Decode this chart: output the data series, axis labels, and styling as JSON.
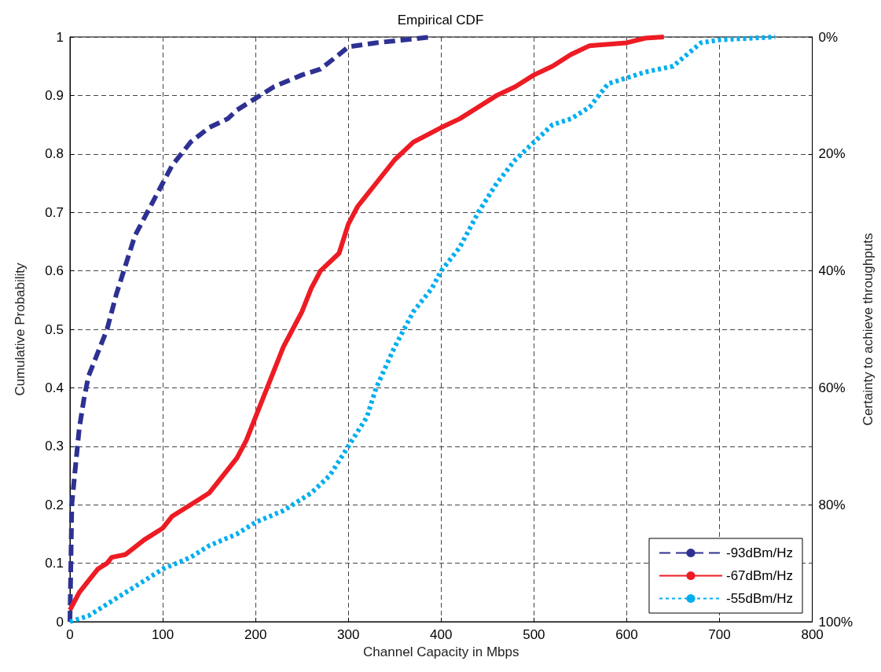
{
  "chart_data": {
    "type": "line",
    "title": "Empirical CDF",
    "xlabel": "Channel Capacity in Mbps",
    "ylabel": "Cumulative Probability",
    "y2label": "Certainty to achieve throughputs",
    "xlim": [
      0,
      800
    ],
    "xticks": [
      0,
      100,
      200,
      300,
      400,
      500,
      600,
      700,
      800
    ],
    "ylim": [
      0,
      1
    ],
    "yticks": [
      0,
      0.1,
      0.2,
      0.3,
      0.4,
      0.5,
      0.6,
      0.7,
      0.8,
      0.9,
      1
    ],
    "y2lim": [
      100,
      0
    ],
    "y2ticks": [
      {
        "value": 0,
        "label": "0%"
      },
      {
        "value": 20,
        "label": "20%"
      },
      {
        "value": 40,
        "label": "40%"
      },
      {
        "value": 60,
        "label": "60%"
      },
      {
        "value": 80,
        "label": "80%"
      },
      {
        "value": 100,
        "label": "100%"
      }
    ],
    "grid": true,
    "legend": "bottom right",
    "series": [
      {
        "name": "-93dBm/Hz",
        "color": "#2e3192",
        "line_style": "dashed",
        "x": [
          0,
          2,
          5,
          10,
          15,
          20,
          25,
          30,
          40,
          50,
          60,
          70,
          80,
          90,
          100,
          110,
          120,
          130,
          150,
          170,
          180,
          200,
          220,
          250,
          270,
          290,
          300,
          330,
          360,
          390
        ],
        "values": [
          0,
          0.2,
          0.25,
          0.33,
          0.38,
          0.42,
          0.44,
          0.46,
          0.5,
          0.56,
          0.61,
          0.66,
          0.69,
          0.72,
          0.75,
          0.78,
          0.8,
          0.82,
          0.845,
          0.86,
          0.875,
          0.895,
          0.915,
          0.935,
          0.945,
          0.97,
          0.983,
          0.99,
          0.995,
          1
        ]
      },
      {
        "name": "-67dBm/Hz",
        "color": "#ed1c24",
        "line_style": "solid",
        "x": [
          0,
          10,
          20,
          30,
          40,
          45,
          60,
          80,
          100,
          110,
          130,
          150,
          170,
          180,
          190,
          200,
          210,
          220,
          230,
          240,
          250,
          260,
          270,
          290,
          300,
          310,
          330,
          350,
          370,
          400,
          420,
          440,
          460,
          480,
          500,
          520,
          540,
          560,
          600,
          620,
          640
        ],
        "values": [
          0.02,
          0.05,
          0.07,
          0.09,
          0.1,
          0.11,
          0.115,
          0.14,
          0.16,
          0.18,
          0.2,
          0.22,
          0.26,
          0.28,
          0.31,
          0.35,
          0.39,
          0.43,
          0.47,
          0.5,
          0.53,
          0.57,
          0.6,
          0.63,
          0.68,
          0.71,
          0.75,
          0.79,
          0.82,
          0.845,
          0.86,
          0.88,
          0.9,
          0.915,
          0.935,
          0.95,
          0.97,
          0.985,
          0.99,
          0.998,
          1
        ]
      },
      {
        "name": "-55dBm/Hz",
        "color": "#00aeef",
        "line_style": "dotted",
        "x": [
          0,
          20,
          50,
          80,
          100,
          130,
          150,
          180,
          200,
          230,
          260,
          280,
          300,
          320,
          330,
          350,
          370,
          390,
          400,
          420,
          440,
          460,
          480,
          500,
          520,
          540,
          560,
          580,
          600,
          620,
          650,
          680,
          700,
          760
        ],
        "values": [
          0,
          0.01,
          0.04,
          0.07,
          0.09,
          0.11,
          0.13,
          0.15,
          0.17,
          0.19,
          0.22,
          0.25,
          0.3,
          0.35,
          0.4,
          0.47,
          0.53,
          0.57,
          0.6,
          0.64,
          0.7,
          0.75,
          0.79,
          0.82,
          0.85,
          0.86,
          0.88,
          0.92,
          0.93,
          0.94,
          0.95,
          0.99,
          0.995,
          1
        ]
      }
    ]
  }
}
